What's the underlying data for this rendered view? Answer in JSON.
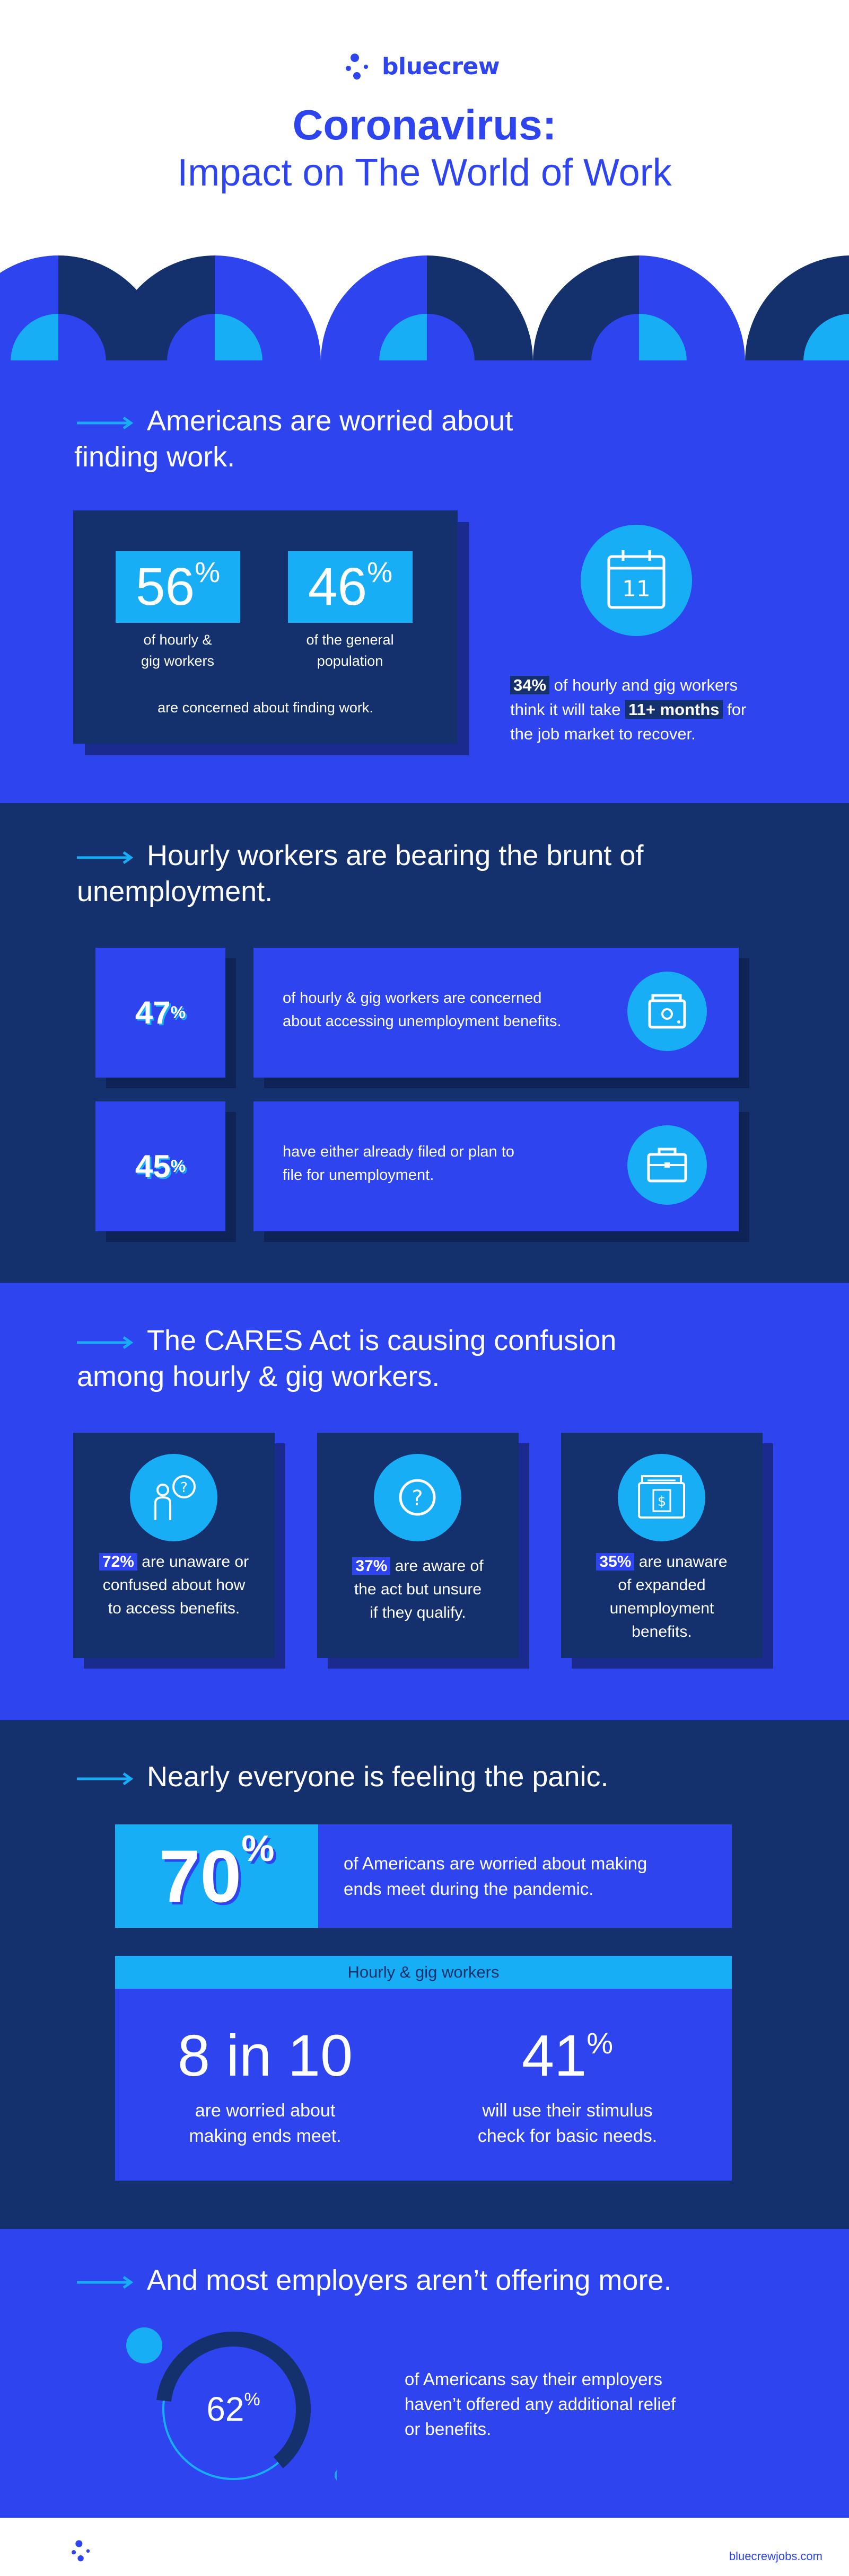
{
  "header": {
    "brand": "bluecrew",
    "title_line1": "Coronavirus:",
    "title_line2": "Impact on The World of Work"
  },
  "colors": {
    "primary_blue": "#2e44ee",
    "navy": "#14316e",
    "cyan": "#18aef6",
    "shadow_blue": "#1a2a8f"
  },
  "section1": {
    "heading_line1": "Americans are worried about",
    "heading_line2": "finding work.",
    "stat1_value": "56",
    "stat1_suffix": "%",
    "stat1_label_line1": "of hourly &",
    "stat1_label_line2": "gig workers",
    "stat2_value": "46",
    "stat2_suffix": "%",
    "stat2_label_line1": "of the general",
    "stat2_label_line2": "population",
    "card_footer": "are concerned about finding work.",
    "calendar_day": "11",
    "side_highlight1": "34%",
    "side_text_a": " of hourly and gig workers",
    "side_text_b": "think it will take ",
    "side_highlight2": "11+ months",
    "side_text_c": " for",
    "side_text_d": "the job market to recover."
  },
  "section2": {
    "heading_line1": "Hourly workers are bearing the brunt of",
    "heading_line2": "unemployment.",
    "row1_value": "47",
    "row1_suffix": "%",
    "row1_text_line1": "of hourly & gig workers are concerned",
    "row1_text_line2": "about accessing unemployment benefits.",
    "row2_value": "45",
    "row2_suffix": "%",
    "row2_text_line1": "have either already filed or plan to",
    "row2_text_line2": "file for unemployment."
  },
  "section3": {
    "heading_line1": "The CARES Act is causing confusion",
    "heading_line2": "among hourly & gig workers.",
    "card1_pct": "72%",
    "card1_l1": " are unaware or",
    "card1_l2": "confused about how",
    "card1_l3": "to access benefits.",
    "card2_pct": "37%",
    "card2_l1": " are aware of",
    "card2_l2": "the act but unsure",
    "card2_l3": "if they qualify.",
    "card3_pct": "35%",
    "card3_l1": " are unaware",
    "card3_l2": "of expanded",
    "card3_l3": "unemployment",
    "card3_l4": "benefits."
  },
  "section4": {
    "heading": "Nearly everyone is feeling the panic.",
    "big_value": "70",
    "big_suffix": "%",
    "big_text_line1": "of Americans are worried about making",
    "big_text_line2": "ends meet during the pandemic.",
    "subhead": "Hourly & gig workers",
    "stat1": "8 in 10",
    "stat1_l1": "are worried about",
    "stat1_l2": "making ends meet.",
    "stat2_value": "41",
    "stat2_suffix": "%",
    "stat2_l1": "will use their stimulus",
    "stat2_l2": "check for basic needs."
  },
  "section5": {
    "heading": "And most employers aren’t offering more.",
    "ring_value": "62",
    "ring_suffix": "%",
    "ring_fraction": 0.62,
    "text_line1": "of Americans say their employers",
    "text_line2": "haven’t offered any additional relief",
    "text_line3": "or benefits."
  },
  "footer": {
    "url": "bluecrewjobs.com"
  }
}
